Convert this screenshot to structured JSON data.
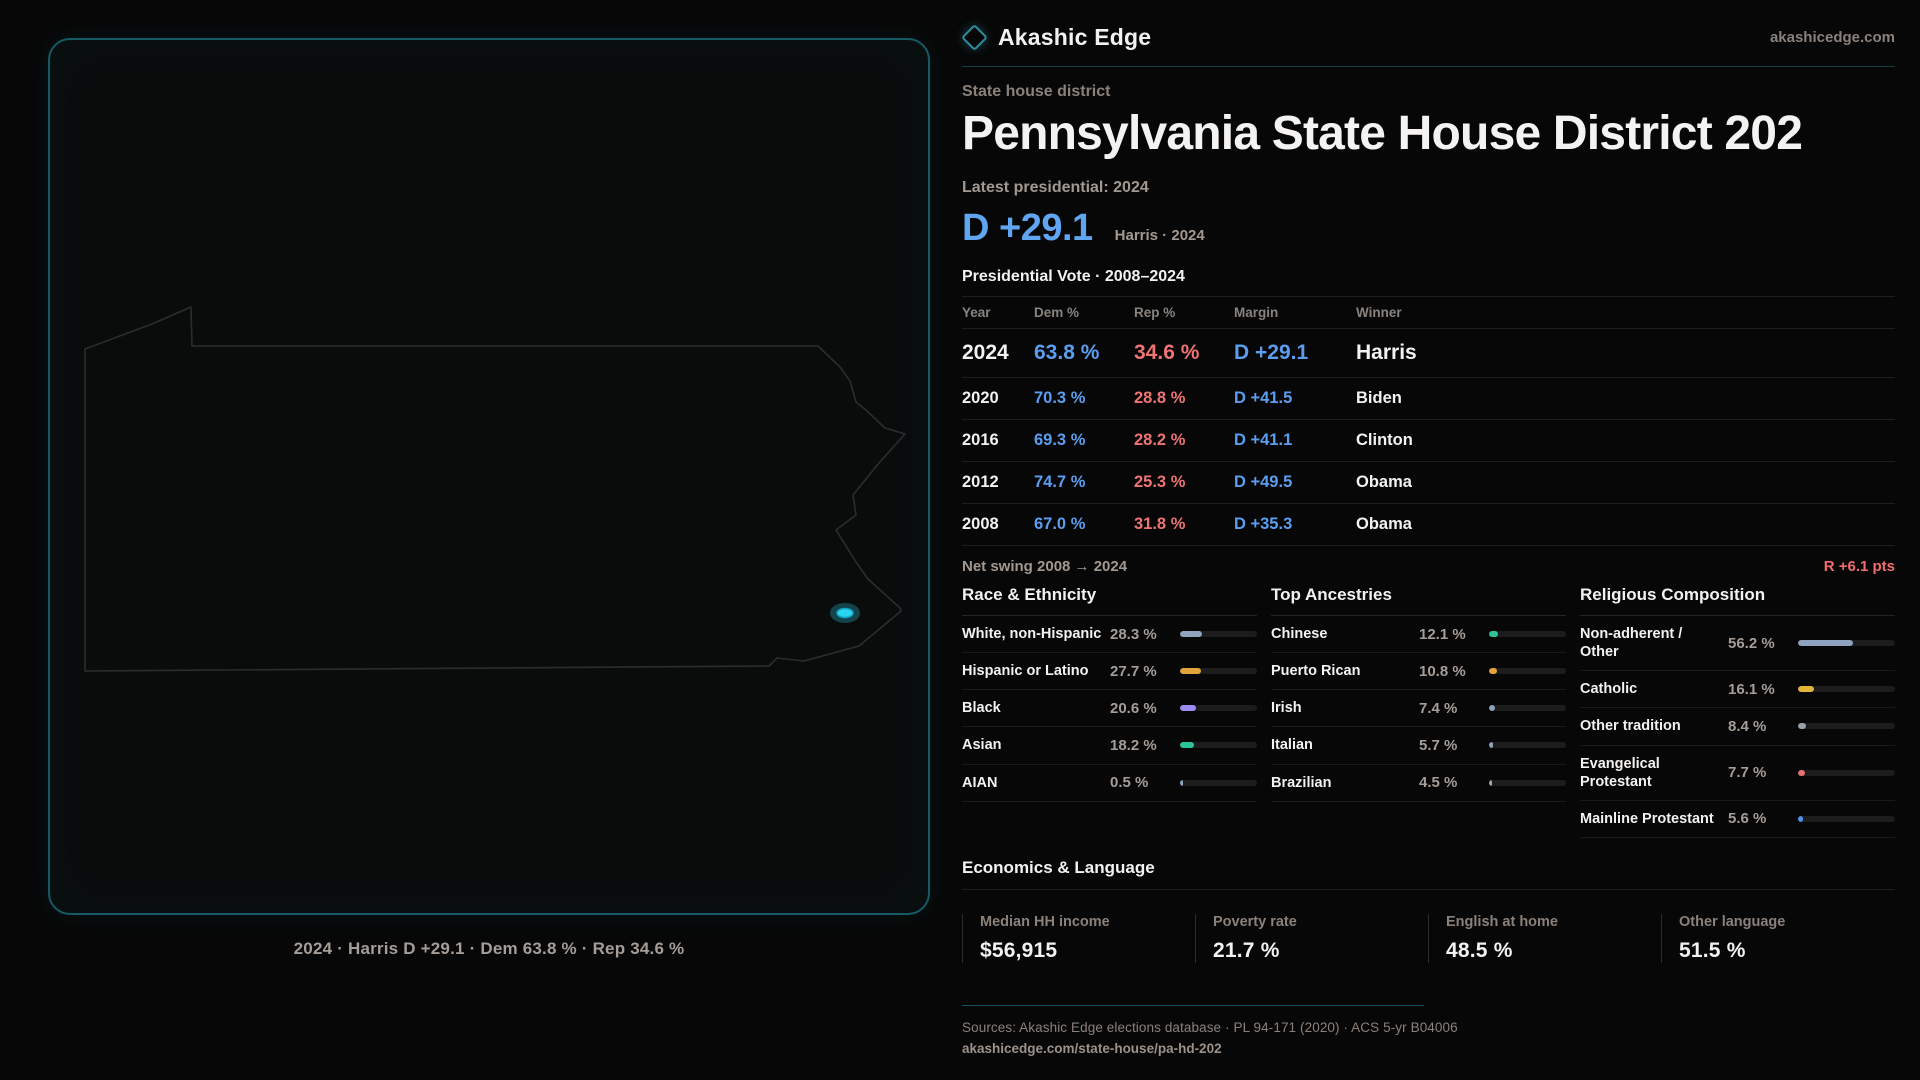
{
  "brand": {
    "name": "Akashic Edge",
    "domain": "akashicedge.com"
  },
  "page": {
    "kicker": "State house district",
    "title": "Pennsylvania State House District 202",
    "latest_label": "Latest presidential: 2024",
    "headline_margin": "D +29.1",
    "headline_context": "Harris · 2024",
    "table_title": "Presidential Vote · 2008–2024"
  },
  "map": {
    "state": "Pennsylvania",
    "accent": "#2dd4ee",
    "caption": "2024 · Harris D +29.1 · Dem 63.8 % · Rep 34.6 %"
  },
  "vote_table": {
    "columns": {
      "year": "Year",
      "dem": "Dem %",
      "rep": "Rep %",
      "margin": "Margin",
      "winner": "Winner"
    },
    "rows": [
      {
        "year": "2024",
        "dem": "63.8 %",
        "rep": "34.6 %",
        "margin": "D +29.1",
        "winner": "Harris",
        "emphasis": true
      },
      {
        "year": "2020",
        "dem": "70.3 %",
        "rep": "28.8 %",
        "margin": "D +41.5",
        "winner": "Biden",
        "emphasis": false
      },
      {
        "year": "2016",
        "dem": "69.3 %",
        "rep": "28.2 %",
        "margin": "D +41.1",
        "winner": "Clinton",
        "emphasis": false
      },
      {
        "year": "2012",
        "dem": "74.7 %",
        "rep": "25.3 %",
        "margin": "D +49.5",
        "winner": "Obama",
        "emphasis": false
      },
      {
        "year": "2008",
        "dem": "67.0 %",
        "rep": "31.8 %",
        "margin": "D +35.3",
        "winner": "Obama",
        "emphasis": false
      }
    ]
  },
  "net_swing": {
    "label": "Net swing 2008 → 2024",
    "value": "R +6.1 pts"
  },
  "demographics": {
    "race": {
      "title": "Race & Ethnicity",
      "rows": [
        {
          "label": "White, non-Hispanic",
          "value": "28.3 %",
          "pct": 28.3,
          "color": "#8fa3bf"
        },
        {
          "label": "Hispanic or Latino",
          "value": "27.7 %",
          "pct": 27.7,
          "color": "#e2a33d"
        },
        {
          "label": "Black",
          "value": "20.6 %",
          "pct": 20.6,
          "color": "#9c8df2"
        },
        {
          "label": "Asian",
          "value": "18.2 %",
          "pct": 18.2,
          "color": "#2cc498"
        },
        {
          "label": "AIAN",
          "value": "0.5 %",
          "pct": 0.5,
          "color": "#8fa3bf"
        }
      ]
    },
    "ancestries": {
      "title": "Top Ancestries",
      "rows": [
        {
          "label": "Chinese",
          "value": "12.1 %",
          "pct": 12.1,
          "color": "#2cc498"
        },
        {
          "label": "Puerto Rican",
          "value": "10.8 %",
          "pct": 10.8,
          "color": "#e2a33d"
        },
        {
          "label": "Irish",
          "value": "7.4 %",
          "pct": 7.4,
          "color": "#8fa3bf"
        },
        {
          "label": "Italian",
          "value": "5.7 %",
          "pct": 5.7,
          "color": "#8fa3bf"
        },
        {
          "label": "Brazilian",
          "value": "4.5 %",
          "pct": 4.5,
          "color": "#a8a29c"
        }
      ]
    },
    "religion": {
      "title": "Religious Composition",
      "rows": [
        {
          "label": "Non-adherent / Other",
          "value": "56.2 %",
          "pct": 56.2,
          "color": "#8fa3bf"
        },
        {
          "label": "Catholic",
          "value": "16.1 %",
          "pct": 16.1,
          "color": "#e0b53a"
        },
        {
          "label": "Other tradition",
          "value": "8.4 %",
          "pct": 8.4,
          "color": "#9aa0a8"
        },
        {
          "label": "Evangelical Protestant",
          "value": "7.7 %",
          "pct": 7.7,
          "color": "#e57272"
        },
        {
          "label": "Mainline Protestant",
          "value": "5.6 %",
          "pct": 5.6,
          "color": "#4f94e8"
        }
      ]
    }
  },
  "economics": {
    "title": "Economics & Language",
    "stats": [
      {
        "label": "Median HH income",
        "value": "$56,915"
      },
      {
        "label": "Poverty rate",
        "value": "21.7 %"
      },
      {
        "label": "English at home",
        "value": "48.5 %"
      },
      {
        "label": "Other language",
        "value": "51.5 %"
      }
    ]
  },
  "footer": {
    "sources": "Sources: Akashic Edge elections database · PL 94-171 (2020) · ACS 5-yr B04006",
    "link": "akashicedge.com/state-house/pa-hd-202"
  }
}
